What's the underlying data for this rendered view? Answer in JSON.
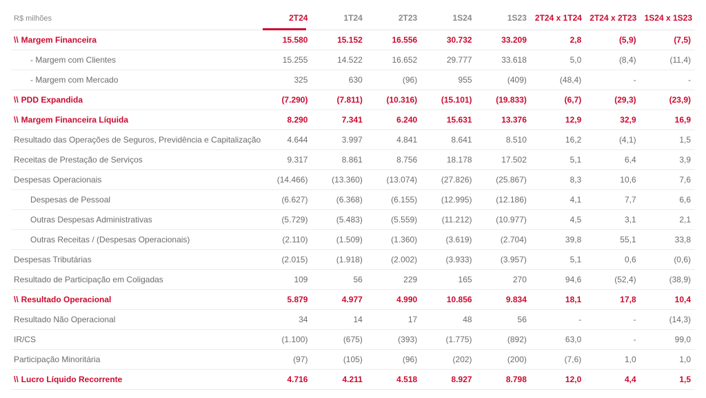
{
  "colors": {
    "brand": "#cc092f",
    "text_label": "#6b6b6b",
    "header_muted": "#8a8a8a",
    "grid": "#ececec",
    "bg": "#ffffff"
  },
  "header": {
    "unit": "R$ milhões",
    "cols": [
      {
        "label": "2T24",
        "style": "highlight"
      },
      {
        "label": "1T24",
        "style": "muted"
      },
      {
        "label": "2T23",
        "style": "muted"
      },
      {
        "label": "1S24",
        "style": "muted"
      },
      {
        "label": "1S23",
        "style": "muted"
      },
      {
        "label": "2T24 x 1T24",
        "style": "brand"
      },
      {
        "label": "2T24 x 2T23",
        "style": "brand"
      },
      {
        "label": "1S24 x 1S23",
        "style": "brand"
      }
    ]
  },
  "rows": [
    {
      "type": "section",
      "prefix": "\\\\",
      "label": "Margem Financeira",
      "v": [
        "15.580",
        "15.152",
        "16.556",
        "30.732",
        "33.209",
        "2,8",
        "(5,9)",
        "(7,5)"
      ]
    },
    {
      "type": "sub1",
      "label": "- Margem com Clientes",
      "v": [
        "15.255",
        "14.522",
        "16.652",
        "29.777",
        "33.618",
        "5,0",
        "(8,4)",
        "(11,4)"
      ]
    },
    {
      "type": "sub1",
      "label": "- Margem com Mercado",
      "v": [
        "325",
        "630",
        "(96)",
        "955",
        "(409)",
        "(48,4)",
        "-",
        "-"
      ]
    },
    {
      "type": "section",
      "prefix": "\\\\",
      "label": "PDD Expandida",
      "v": [
        "(7.290)",
        "(7.811)",
        "(10.316)",
        "(15.101)",
        "(19.833)",
        "(6,7)",
        "(29,3)",
        "(23,9)"
      ]
    },
    {
      "type": "section",
      "prefix": "\\\\",
      "label": "Margem Financeira Líquida",
      "v": [
        "8.290",
        "7.341",
        "6.240",
        "15.631",
        "13.376",
        "12,9",
        "32,9",
        "16,9"
      ]
    },
    {
      "type": "row",
      "label": "Resultado das Operações de Seguros, Previdência e Capitalização",
      "v": [
        "4.644",
        "3.997",
        "4.841",
        "8.641",
        "8.510",
        "16,2",
        "(4,1)",
        "1,5"
      ]
    },
    {
      "type": "row",
      "label": "Receitas de Prestação de Serviços",
      "v": [
        "9.317",
        "8.861",
        "8.756",
        "18.178",
        "17.502",
        "5,1",
        "6,4",
        "3,9"
      ]
    },
    {
      "type": "row",
      "label": "Despesas Operacionais",
      "v": [
        "(14.466)",
        "(13.360)",
        "(13.074)",
        "(27.826)",
        "(25.867)",
        "8,3",
        "10,6",
        "7,6"
      ]
    },
    {
      "type": "sub1",
      "label": "Despesas de Pessoal",
      "v": [
        "(6.627)",
        "(6.368)",
        "(6.155)",
        "(12.995)",
        "(12.186)",
        "4,1",
        "7,7",
        "6,6"
      ]
    },
    {
      "type": "sub1",
      "label": "Outras Despesas Administrativas",
      "v": [
        "(5.729)",
        "(5.483)",
        "(5.559)",
        "(11.212)",
        "(10.977)",
        "4,5",
        "3,1",
        "2,1"
      ]
    },
    {
      "type": "sub1",
      "label": "Outras Receitas / (Despesas Operacionais)",
      "v": [
        "(2.110)",
        "(1.509)",
        "(1.360)",
        "(3.619)",
        "(2.704)",
        "39,8",
        "55,1",
        "33,8"
      ]
    },
    {
      "type": "row",
      "label": "Despesas Tributárias",
      "v": [
        "(2.015)",
        "(1.918)",
        "(2.002)",
        "(3.933)",
        "(3.957)",
        "5,1",
        "0,6",
        "(0,6)"
      ]
    },
    {
      "type": "row",
      "label": "Resultado de Participação em Coligadas",
      "v": [
        "109",
        "56",
        "229",
        "165",
        "270",
        "94,6",
        "(52,4)",
        "(38,9)"
      ]
    },
    {
      "type": "section",
      "prefix": "\\\\",
      "label": "Resultado Operacional",
      "v": [
        "5.879",
        "4.977",
        "4.990",
        "10.856",
        "9.834",
        "18,1",
        "17,8",
        "10,4"
      ]
    },
    {
      "type": "row",
      "label": "Resultado Não Operacional",
      "v": [
        "34",
        "14",
        "17",
        "48",
        "56",
        "-",
        "-",
        "(14,3)"
      ]
    },
    {
      "type": "row",
      "label": "IR/CS",
      "v": [
        "(1.100)",
        "(675)",
        "(393)",
        "(1.775)",
        "(892)",
        "63,0",
        "-",
        "99,0"
      ]
    },
    {
      "type": "row",
      "label": "Participação Minoritária",
      "v": [
        "(97)",
        "(105)",
        "(96)",
        "(202)",
        "(200)",
        "(7,6)",
        "1,0",
        "1,0"
      ]
    },
    {
      "type": "section",
      "prefix": "\\\\",
      "label": "Lucro Líquido Recorrente",
      "v": [
        "4.716",
        "4.211",
        "4.518",
        "8.927",
        "8.798",
        "12,0",
        "4,4",
        "1,5"
      ]
    }
  ]
}
